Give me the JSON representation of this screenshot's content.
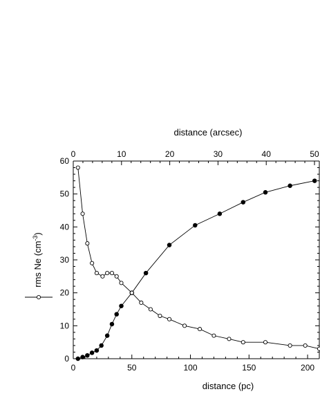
{
  "chart_data": {
    "type": "line",
    "xlabel": "distance (pc)",
    "x2label": "distance (arcsec)",
    "ylabel": "rms Ne (cm",
    "ylabel_sup": "-3",
    "ylabel_end": ")",
    "xlim": [
      0,
      210
    ],
    "x2lim": [
      0,
      51
    ],
    "ylim": [
      0,
      60
    ],
    "x_ticks": [
      0,
      50,
      100,
      150,
      200
    ],
    "x2_ticks": [
      0,
      10,
      20,
      30,
      40,
      50
    ],
    "y_ticks": [
      0,
      10,
      20,
      30,
      40,
      50,
      60
    ],
    "grid": false,
    "series": [
      {
        "marker": "filled-circle",
        "x": [
          4,
          8,
          12,
          16,
          20,
          24,
          29,
          33,
          37,
          41,
          50,
          62,
          82,
          104,
          125,
          145,
          164,
          185,
          206
        ],
        "y": [
          0,
          0.5,
          1,
          1.8,
          2.5,
          4,
          7,
          10.5,
          13.5,
          16,
          20,
          26,
          34.5,
          40.5,
          44,
          47.5,
          50.5,
          52.5,
          54
        ]
      },
      {
        "marker": "open-circle",
        "x": [
          4,
          8,
          12,
          16,
          20,
          25,
          29,
          33,
          37,
          41,
          50,
          58,
          66,
          74,
          82,
          95,
          108,
          120,
          133,
          145,
          164,
          185,
          198,
          210
        ],
        "y": [
          58,
          44,
          35,
          29,
          26,
          25,
          26,
          26,
          25,
          23,
          20,
          17,
          15,
          13,
          12,
          10,
          9,
          7,
          6,
          5,
          5,
          4,
          4,
          3
        ]
      }
    ]
  }
}
